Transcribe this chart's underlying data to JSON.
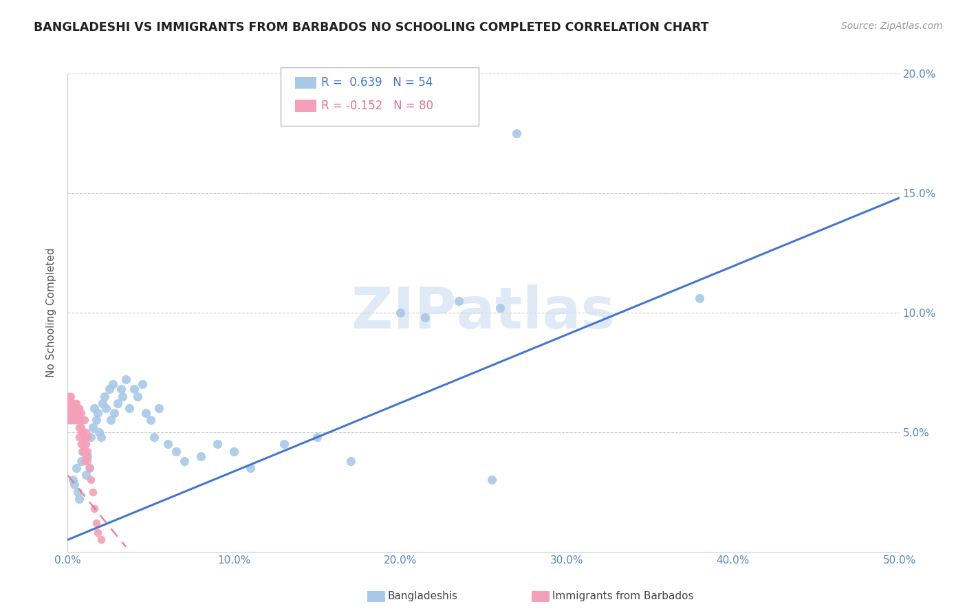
{
  "title": "BANGLADESHI VS IMMIGRANTS FROM BARBADOS NO SCHOOLING COMPLETED CORRELATION CHART",
  "source": "Source: ZipAtlas.com",
  "ylabel": "No Schooling Completed",
  "xlim": [
    0.0,
    0.5
  ],
  "ylim": [
    0.0,
    0.2
  ],
  "xticks": [
    0.0,
    0.1,
    0.2,
    0.3,
    0.4,
    0.5
  ],
  "yticks": [
    0.0,
    0.05,
    0.1,
    0.15,
    0.2
  ],
  "xtick_labels": [
    "0.0%",
    "10.0%",
    "20.0%",
    "30.0%",
    "40.0%",
    "50.0%"
  ],
  "ytick_labels": [
    "",
    "5.0%",
    "10.0%",
    "15.0%",
    "20.0%"
  ],
  "blue_R": 0.639,
  "blue_N": 54,
  "pink_R": -0.152,
  "pink_N": 80,
  "blue_color": "#a8c8e8",
  "pink_color": "#f4a0b8",
  "blue_line_color": "#4477cc",
  "pink_line_color": "#e87090",
  "title_color": "#222222",
  "axis_color": "#5588bb",
  "watermark_color": "#ccddf0",
  "blue_scatter": [
    [
      0.003,
      0.03
    ],
    [
      0.004,
      0.028
    ],
    [
      0.005,
      0.035
    ],
    [
      0.006,
      0.025
    ],
    [
      0.007,
      0.022
    ],
    [
      0.008,
      0.038
    ],
    [
      0.009,
      0.042
    ],
    [
      0.01,
      0.045
    ],
    [
      0.011,
      0.032
    ],
    [
      0.012,
      0.04
    ],
    [
      0.013,
      0.035
    ],
    [
      0.014,
      0.048
    ],
    [
      0.015,
      0.052
    ],
    [
      0.016,
      0.06
    ],
    [
      0.017,
      0.055
    ],
    [
      0.018,
      0.058
    ],
    [
      0.019,
      0.05
    ],
    [
      0.02,
      0.048
    ],
    [
      0.021,
      0.062
    ],
    [
      0.022,
      0.065
    ],
    [
      0.023,
      0.06
    ],
    [
      0.025,
      0.068
    ],
    [
      0.026,
      0.055
    ],
    [
      0.027,
      0.07
    ],
    [
      0.028,
      0.058
    ],
    [
      0.03,
      0.062
    ],
    [
      0.032,
      0.068
    ],
    [
      0.033,
      0.065
    ],
    [
      0.035,
      0.072
    ],
    [
      0.037,
      0.06
    ],
    [
      0.04,
      0.068
    ],
    [
      0.042,
      0.065
    ],
    [
      0.045,
      0.07
    ],
    [
      0.047,
      0.058
    ],
    [
      0.05,
      0.055
    ],
    [
      0.052,
      0.048
    ],
    [
      0.055,
      0.06
    ],
    [
      0.06,
      0.045
    ],
    [
      0.065,
      0.042
    ],
    [
      0.07,
      0.038
    ],
    [
      0.08,
      0.04
    ],
    [
      0.09,
      0.045
    ],
    [
      0.1,
      0.042
    ],
    [
      0.11,
      0.035
    ],
    [
      0.13,
      0.045
    ],
    [
      0.15,
      0.048
    ],
    [
      0.17,
      0.038
    ],
    [
      0.2,
      0.1
    ],
    [
      0.215,
      0.098
    ],
    [
      0.235,
      0.105
    ],
    [
      0.255,
      0.03
    ],
    [
      0.27,
      0.175
    ],
    [
      0.38,
      0.106
    ],
    [
      0.26,
      0.102
    ]
  ],
  "pink_scatter": [
    [
      0.0,
      0.062
    ],
    [
      0.0,
      0.058
    ],
    [
      0.0,
      0.065
    ],
    [
      0.0,
      0.055
    ],
    [
      0.0,
      0.06
    ],
    [
      0.001,
      0.06
    ],
    [
      0.001,
      0.058
    ],
    [
      0.001,
      0.065
    ],
    [
      0.001,
      0.055
    ],
    [
      0.001,
      0.062
    ],
    [
      0.002,
      0.06
    ],
    [
      0.002,
      0.058
    ],
    [
      0.002,
      0.062
    ],
    [
      0.002,
      0.055
    ],
    [
      0.002,
      0.065
    ],
    [
      0.003,
      0.06
    ],
    [
      0.003,
      0.058
    ],
    [
      0.003,
      0.055
    ],
    [
      0.003,
      0.062
    ],
    [
      0.004,
      0.06
    ],
    [
      0.004,
      0.058
    ],
    [
      0.004,
      0.055
    ],
    [
      0.004,
      0.062
    ],
    [
      0.005,
      0.06
    ],
    [
      0.005,
      0.058
    ],
    [
      0.005,
      0.055
    ],
    [
      0.006,
      0.06
    ],
    [
      0.006,
      0.058
    ],
    [
      0.007,
      0.06
    ],
    [
      0.007,
      0.055
    ],
    [
      0.008,
      0.058
    ],
    [
      0.008,
      0.055
    ],
    [
      0.009,
      0.055
    ],
    [
      0.009,
      0.05
    ],
    [
      0.01,
      0.055
    ],
    [
      0.01,
      0.048
    ],
    [
      0.011,
      0.05
    ],
    [
      0.011,
      0.045
    ],
    [
      0.012,
      0.048
    ],
    [
      0.012,
      0.042
    ],
    [
      0.0,
      0.058
    ],
    [
      0.001,
      0.06
    ],
    [
      0.001,
      0.055
    ],
    [
      0.002,
      0.06
    ],
    [
      0.002,
      0.055
    ],
    [
      0.003,
      0.058
    ],
    [
      0.003,
      0.062
    ],
    [
      0.004,
      0.055
    ],
    [
      0.004,
      0.06
    ],
    [
      0.005,
      0.058
    ],
    [
      0.005,
      0.055
    ],
    [
      0.006,
      0.058
    ],
    [
      0.006,
      0.055
    ],
    [
      0.007,
      0.052
    ],
    [
      0.007,
      0.048
    ],
    [
      0.008,
      0.05
    ],
    [
      0.008,
      0.045
    ],
    [
      0.009,
      0.045
    ],
    [
      0.009,
      0.042
    ],
    [
      0.01,
      0.042
    ],
    [
      0.01,
      0.038
    ],
    [
      0.011,
      0.04
    ],
    [
      0.012,
      0.038
    ],
    [
      0.013,
      0.035
    ],
    [
      0.014,
      0.03
    ],
    [
      0.015,
      0.025
    ],
    [
      0.016,
      0.018
    ],
    [
      0.017,
      0.012
    ],
    [
      0.018,
      0.008
    ],
    [
      0.02,
      0.005
    ],
    [
      0.0,
      0.06
    ],
    [
      0.001,
      0.062
    ],
    [
      0.002,
      0.058
    ],
    [
      0.003,
      0.06
    ],
    [
      0.004,
      0.058
    ],
    [
      0.005,
      0.062
    ],
    [
      0.006,
      0.055
    ],
    [
      0.007,
      0.058
    ],
    [
      0.008,
      0.052
    ],
    [
      0.01,
      0.048
    ]
  ],
  "blue_line_x": [
    0.0,
    0.5
  ],
  "blue_line_y": [
    0.005,
    0.148
  ],
  "pink_line_x": [
    0.0,
    0.035
  ],
  "pink_line_y": [
    0.032,
    0.002
  ]
}
